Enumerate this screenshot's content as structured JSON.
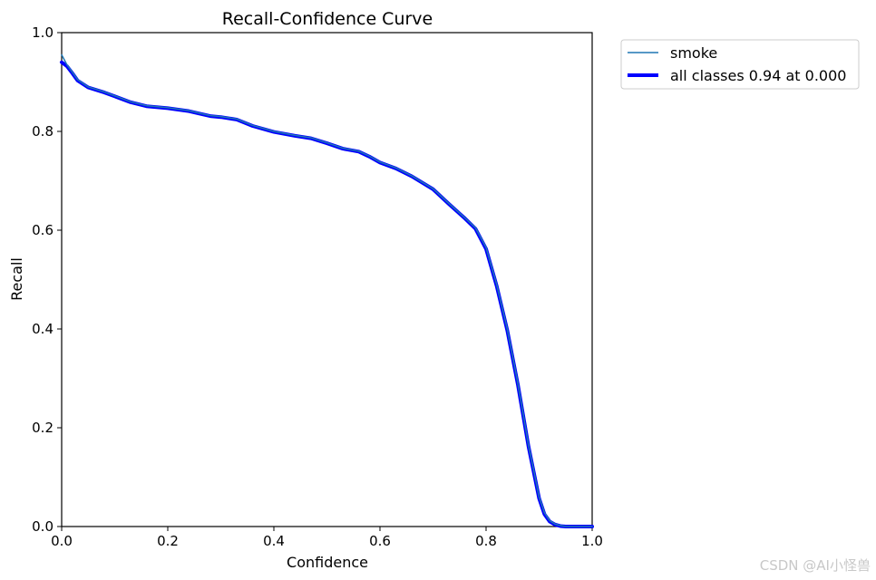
{
  "chart_data": {
    "type": "line",
    "title": "Recall-Confidence Curve",
    "xlabel": "Confidence",
    "ylabel": "Recall",
    "xlim": [
      0.0,
      1.0
    ],
    "ylim": [
      0.0,
      1.0
    ],
    "xticks": [
      "0.0",
      "0.2",
      "0.4",
      "0.6",
      "0.8",
      "1.0"
    ],
    "yticks": [
      "0.0",
      "0.2",
      "0.4",
      "0.6",
      "0.8",
      "1.0"
    ],
    "grid": false,
    "legend_position": "outside-top-right",
    "series": [
      {
        "name": "smoke",
        "color": "#1f77b4",
        "style": "thin",
        "x": [
          0.0,
          0.01,
          0.02,
          0.03,
          0.05,
          0.08,
          0.1,
          0.13,
          0.16,
          0.2,
          0.24,
          0.28,
          0.3,
          0.33,
          0.36,
          0.4,
          0.44,
          0.47,
          0.5,
          0.53,
          0.56,
          0.58,
          0.6,
          0.63,
          0.66,
          0.7,
          0.73,
          0.76,
          0.78,
          0.8,
          0.82,
          0.84,
          0.86,
          0.88,
          0.9,
          0.91,
          0.92,
          0.93,
          0.94,
          0.95,
          0.96,
          0.98,
          1.0
        ],
        "y": [
          0.955,
          0.935,
          0.92,
          0.905,
          0.89,
          0.88,
          0.872,
          0.86,
          0.852,
          0.848,
          0.842,
          0.832,
          0.83,
          0.825,
          0.812,
          0.8,
          0.792,
          0.787,
          0.777,
          0.766,
          0.76,
          0.75,
          0.738,
          0.726,
          0.71,
          0.684,
          0.654,
          0.625,
          0.605,
          0.565,
          0.49,
          0.4,
          0.29,
          0.165,
          0.06,
          0.028,
          0.012,
          0.005,
          0.002,
          0.0,
          0.0,
          0.0,
          0.0
        ]
      },
      {
        "name": "all classes 0.94 at 0.000",
        "color": "#0000ff",
        "style": "thick",
        "x": [
          0.0,
          0.01,
          0.02,
          0.03,
          0.05,
          0.08,
          0.1,
          0.13,
          0.16,
          0.2,
          0.24,
          0.28,
          0.3,
          0.33,
          0.36,
          0.4,
          0.44,
          0.47,
          0.5,
          0.53,
          0.56,
          0.58,
          0.6,
          0.63,
          0.66,
          0.7,
          0.73,
          0.76,
          0.78,
          0.8,
          0.82,
          0.84,
          0.86,
          0.88,
          0.9,
          0.91,
          0.92,
          0.93,
          0.94,
          0.95,
          0.96,
          0.98,
          1.0
        ],
        "y": [
          0.94,
          0.932,
          0.918,
          0.903,
          0.889,
          0.879,
          0.871,
          0.859,
          0.851,
          0.847,
          0.841,
          0.831,
          0.829,
          0.824,
          0.811,
          0.799,
          0.791,
          0.786,
          0.776,
          0.765,
          0.759,
          0.749,
          0.737,
          0.725,
          0.709,
          0.683,
          0.653,
          0.624,
          0.603,
          0.562,
          0.487,
          0.397,
          0.287,
          0.162,
          0.057,
          0.025,
          0.01,
          0.004,
          0.001,
          0.0,
          0.0,
          0.0,
          0.0
        ]
      }
    ]
  },
  "watermark": "CSDN @AI小怪兽"
}
